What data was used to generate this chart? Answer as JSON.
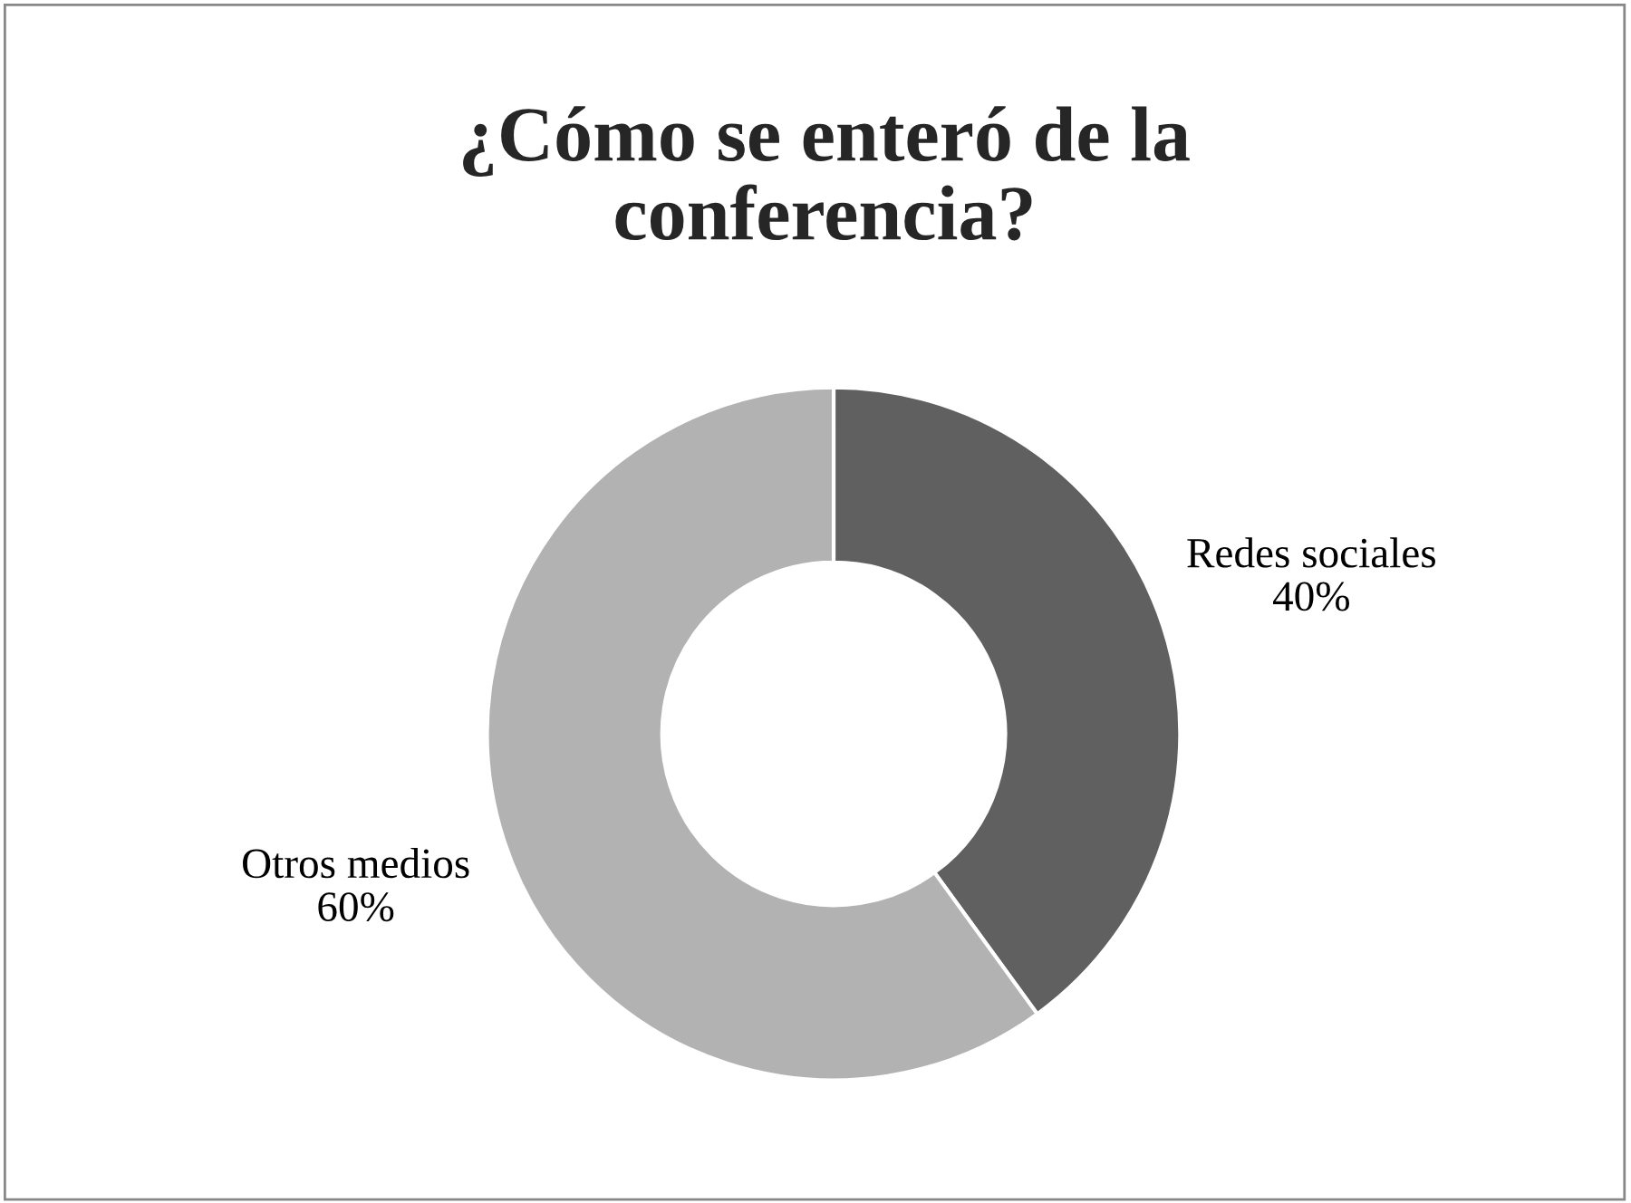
{
  "chart_data": {
    "type": "donut",
    "title": "¿Cómo se enteró de la\nconferencia?",
    "categories": [
      "Redes sociales",
      "Otros medios"
    ],
    "values": [
      40,
      60
    ],
    "value_labels": [
      "40%",
      "60%"
    ],
    "colors": [
      "#606060",
      "#b2b2b2"
    ],
    "legend": false
  }
}
